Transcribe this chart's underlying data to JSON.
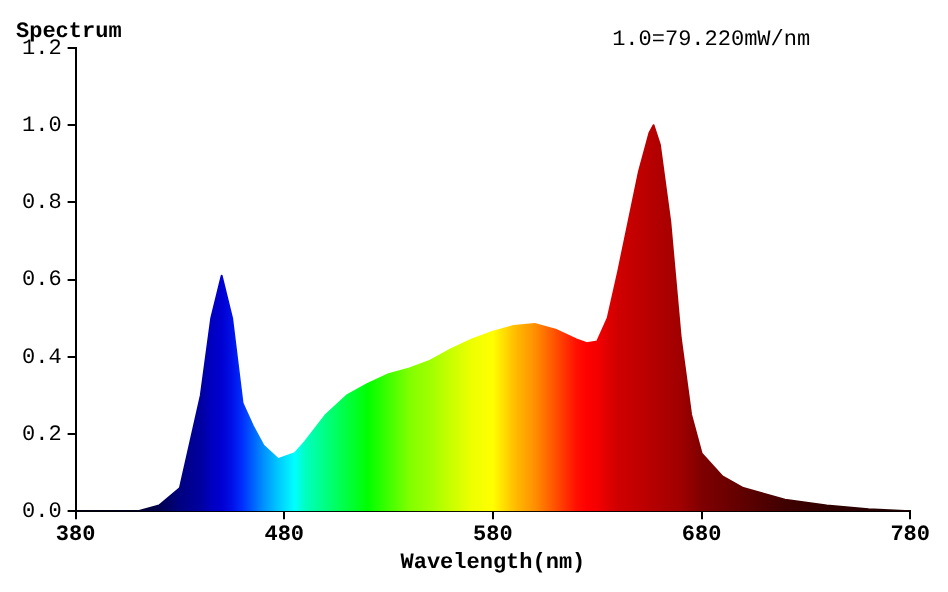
{
  "chart_data": {
    "type": "area",
    "ylabel": "Spectrum",
    "xlabel": "Wavelength(nm)",
    "annotations": [
      "1.0=79.220mW/nm"
    ],
    "x": [
      380,
      400,
      410,
      420,
      430,
      440,
      445,
      450,
      455,
      460,
      465,
      470,
      477,
      485,
      490,
      500,
      510,
      520,
      530,
      540,
      550,
      560,
      570,
      580,
      590,
      600,
      610,
      620,
      625,
      630,
      635,
      640,
      645,
      650,
      655,
      657,
      660,
      665,
      670,
      675,
      680,
      690,
      700,
      720,
      740,
      760,
      780
    ],
    "values": [
      0.0,
      0.0,
      0.0,
      0.015,
      0.06,
      0.3,
      0.5,
      0.61,
      0.5,
      0.28,
      0.22,
      0.17,
      0.135,
      0.15,
      0.18,
      0.25,
      0.3,
      0.33,
      0.355,
      0.37,
      0.39,
      0.42,
      0.445,
      0.465,
      0.48,
      0.485,
      0.47,
      0.445,
      0.435,
      0.44,
      0.5,
      0.62,
      0.75,
      0.88,
      0.98,
      1.0,
      0.95,
      0.75,
      0.45,
      0.25,
      0.15,
      0.09,
      0.06,
      0.03,
      0.015,
      0.005,
      0.0
    ],
    "colors": [
      "#000010",
      "#000020",
      "#000030",
      "#000050",
      "#000080",
      "#0000a0",
      "#0000c0",
      "#0000d0",
      "#0010e8",
      "#0030ff",
      "#0060ff",
      "#0090ff",
      "#00c8ff",
      "#00ffff",
      "#00ffc0",
      "#00ff80",
      "#00ff40",
      "#00ff00",
      "#40ff00",
      "#80ff00",
      "#a0ff00",
      "#c8ff00",
      "#eeff00",
      "#ffff00",
      "#ffc000",
      "#ff9000",
      "#ff5000",
      "#ff1000",
      "#ff0000",
      "#f40000",
      "#e00000",
      "#d00000",
      "#c80000",
      "#c00000",
      "#b80000",
      "#b40000",
      "#b00000",
      "#a80000",
      "#a00000",
      "#900000",
      "#800000",
      "#700000",
      "#600000",
      "#400000",
      "#300000",
      "#280000",
      "#200000"
    ],
    "xlim": [
      380,
      780
    ],
    "xticks": [
      380,
      480,
      580,
      680,
      780
    ],
    "ylim": [
      0,
      1.2
    ],
    "yticks": [
      {
        "value": 0,
        "label": "0.0"
      },
      {
        "value": 0.2,
        "label": "0.2"
      },
      {
        "value": 0.4,
        "label": "0.4"
      },
      {
        "value": 0.6,
        "label": "0.6"
      },
      {
        "value": 0.8,
        "label": "0.8"
      },
      {
        "value": 1,
        "label": "1.0"
      },
      {
        "value": 1.2,
        "label": "1.2"
      }
    ],
    "grid": false,
    "legend": false
  }
}
